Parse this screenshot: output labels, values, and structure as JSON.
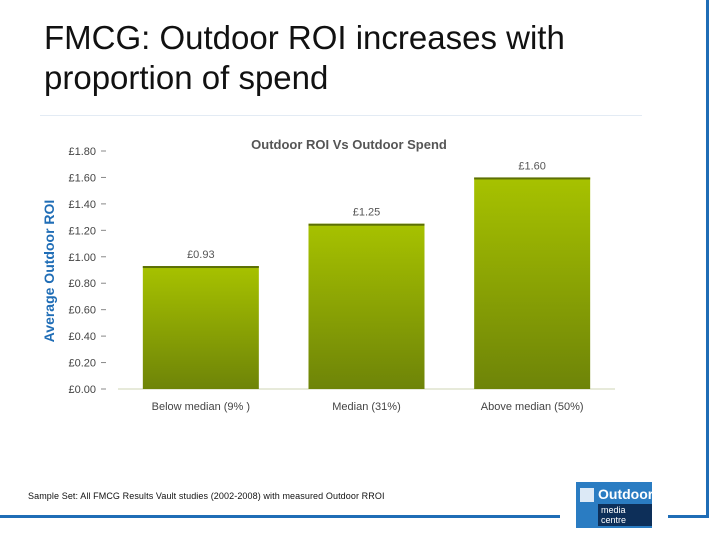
{
  "slide": {
    "title_line1": "FMCG: Outdoor ROI increases with",
    "title_line2": "proportion of spend",
    "footnote": "Sample Set: All FMCG Results Vault studies (2002-2008) with measured Outdoor RROI"
  },
  "logo": {
    "line1": "Outdoor",
    "line2": "media centre",
    "icon": "outdoor-logo-icon"
  },
  "colors": {
    "bar_top": "#a7c200",
    "bar_bottom": "#6e8408",
    "accent_blue": "#1f6db6",
    "title_text": "#111111"
  },
  "chart_data": {
    "type": "bar",
    "title": "Outdoor ROI Vs Outdoor Spend",
    "xlabel": "",
    "ylabel": "Average Outdoor ROI",
    "categories": [
      "Below median (9% )",
      "Median (31%)",
      "Above median (50%)"
    ],
    "values": [
      0.93,
      1.25,
      1.6
    ],
    "data_labels": [
      "£0.93",
      "£1.25",
      "£1.60"
    ],
    "ylim": [
      0,
      1.8
    ],
    "yticks": [
      "£0.00",
      "£0.20",
      "£0.40",
      "£0.60",
      "£0.80",
      "£1.00",
      "£1.20",
      "£1.40",
      "£1.60",
      "£1.80"
    ],
    "ytick_values": [
      0,
      0.2,
      0.4,
      0.6,
      0.8,
      1.0,
      1.2,
      1.4,
      1.6,
      1.8
    ],
    "grid": false,
    "legend": "none"
  }
}
